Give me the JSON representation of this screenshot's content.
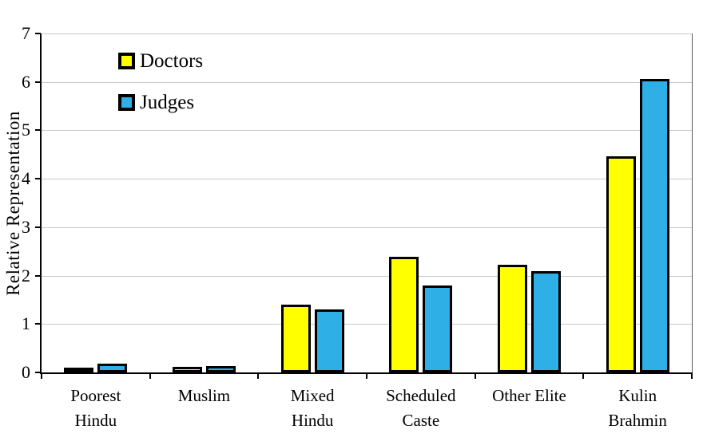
{
  "chart_data": {
    "type": "bar",
    "title": "",
    "xlabel": "",
    "ylabel": "Relative Representation",
    "ylim": [
      0,
      7
    ],
    "ytick_step": 1,
    "grid": true,
    "legend_position": "top-left-inside",
    "categories": [
      "Poorest\nHindu",
      "Muslim",
      "Mixed\nHindu",
      "Scheduled\nCaste",
      "Other Elite",
      "Kulin\nBrahmin"
    ],
    "series": [
      {
        "name": "Doctors",
        "color": "#FFFF00",
        "values": [
          0.08,
          0.11,
          1.4,
          2.39,
          2.22,
          4.46
        ]
      },
      {
        "name": "Judges",
        "color": "#2EAFE5",
        "values": [
          0.18,
          0.13,
          1.3,
          1.79,
          2.09,
          6.06
        ]
      }
    ]
  },
  "colors": {
    "bar_border": "#000000",
    "gridline": "#c8c8c8",
    "axis": "#000000",
    "background": "#ffffff"
  }
}
